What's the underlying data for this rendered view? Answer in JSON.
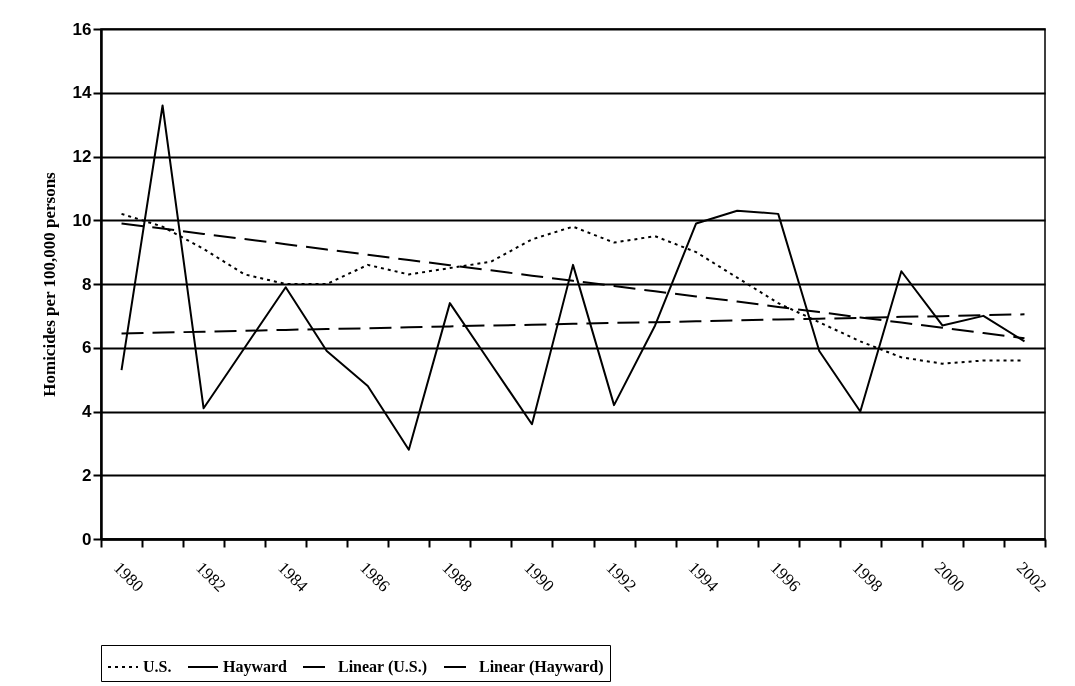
{
  "chart_data": {
    "type": "line",
    "ylabel": "Homicides per 100,000 persons",
    "categories": [
      "1980",
      null,
      "1982",
      null,
      "1984",
      null,
      "1986",
      null,
      "1988",
      null,
      "1990",
      null,
      "1992",
      null,
      "1994",
      null,
      "1996",
      null,
      "1998",
      null,
      "2000",
      null,
      "2002"
    ],
    "ylim": [
      0,
      16
    ],
    "yticks": [
      0,
      2,
      4,
      6,
      8,
      10,
      12,
      14,
      16
    ],
    "grid": "y",
    "legend": "bottom",
    "series": [
      {
        "name": "U.S.",
        "color": "#000000",
        "line_style": "dotted",
        "values": [
          10.2,
          9.8,
          9.1,
          8.3,
          8.0,
          8.0,
          8.6,
          8.3,
          8.5,
          8.7,
          9.4,
          9.8,
          9.3,
          9.5,
          9.0,
          8.2,
          7.4,
          6.8,
          6.2,
          5.7,
          5.5,
          5.6,
          5.6
        ]
      },
      {
        "name": "Hayward",
        "color": "#000000",
        "line_style": "solid",
        "values": [
          5.3,
          13.6,
          4.1,
          6.0,
          7.9,
          5.9,
          4.8,
          2.8,
          7.4,
          5.5,
          3.6,
          8.6,
          4.2,
          6.7,
          9.9,
          10.3,
          10.2,
          5.9,
          4.0,
          8.4,
          6.7,
          7.0,
          6.2
        ]
      },
      {
        "name": "Linear (U.S.)",
        "color": "#000000",
        "line_style": "dashed",
        "values": [
          9.9,
          9.74,
          9.57,
          9.41,
          9.25,
          9.08,
          8.92,
          8.75,
          8.59,
          8.43,
          8.26,
          8.1,
          7.94,
          7.77,
          7.61,
          7.45,
          7.28,
          7.12,
          6.95,
          6.79,
          6.63,
          6.46,
          6.3
        ]
      },
      {
        "name": "Linear (Hayward)",
        "color": "#000000",
        "line_style": "dashed",
        "values": [
          6.45,
          6.48,
          6.5,
          6.53,
          6.56,
          6.59,
          6.61,
          6.64,
          6.67,
          6.7,
          6.72,
          6.75,
          6.78,
          6.8,
          6.83,
          6.86,
          6.89,
          6.91,
          6.94,
          6.97,
          6.99,
          7.02,
          7.05
        ]
      }
    ]
  }
}
